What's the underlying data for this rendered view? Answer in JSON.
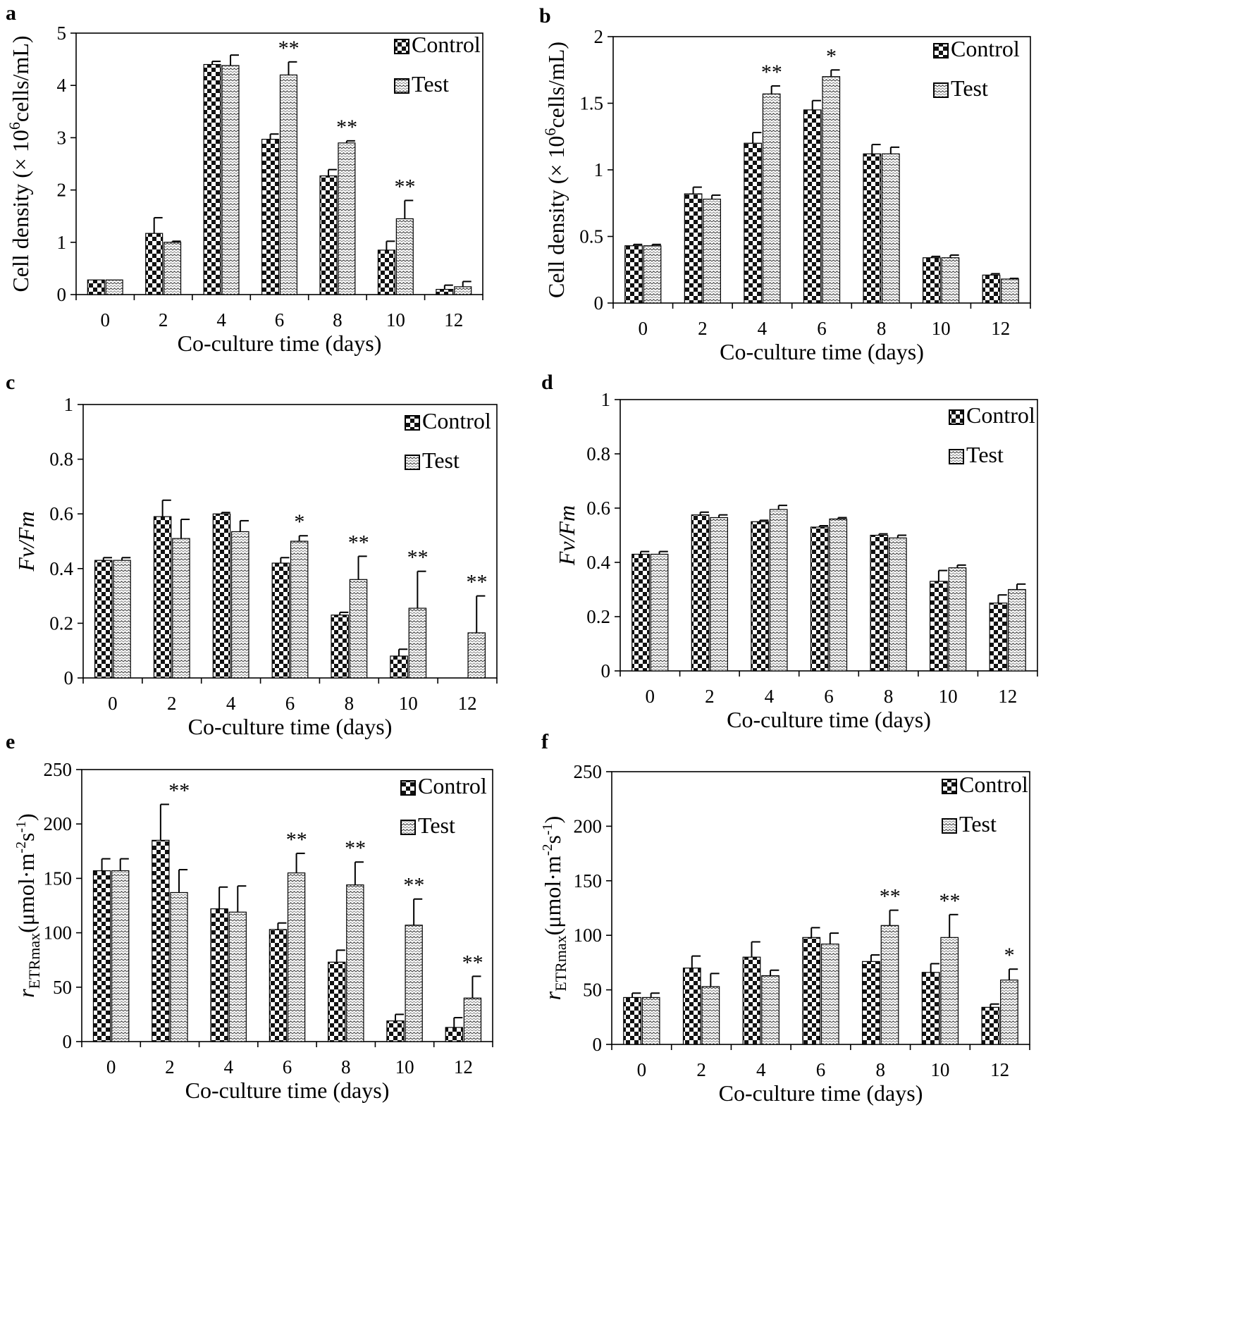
{
  "chart_data": [
    {
      "panel": "a",
      "type": "bar",
      "categories": [
        "0",
        "2",
        "4",
        "6",
        "8",
        "10",
        "12"
      ],
      "xlabel": "Co-culture time (days)",
      "ylabel": "Cell density (×10⁶cells/mL)",
      "ylabel_parts": {
        "main": "Cell density (× 10",
        "sup": "6",
        "tail": "cells/mL)"
      },
      "ylim": [
        0,
        5
      ],
      "yticks": [
        0,
        1,
        2,
        3,
        4,
        5
      ],
      "legend": [
        "Control",
        "Test"
      ],
      "series": [
        {
          "name": "Control",
          "values": [
            0.28,
            1.17,
            4.4,
            2.97,
            2.27,
            0.85,
            0.1
          ],
          "errors": [
            0,
            0.3,
            0.06,
            0.1,
            0.12,
            0.17,
            0.08
          ]
        },
        {
          "name": "Test",
          "values": [
            0.28,
            1.0,
            4.38,
            4.2,
            2.9,
            1.45,
            0.15
          ],
          "errors": [
            0,
            0.02,
            0.2,
            0.25,
            0.04,
            0.35,
            0.1
          ]
        }
      ],
      "significance": [
        "",
        "",
        "",
        "**",
        "**",
        "**",
        ""
      ]
    },
    {
      "panel": "b",
      "type": "bar",
      "categories": [
        "0",
        "2",
        "4",
        "6",
        "8",
        "10",
        "12"
      ],
      "xlabel": "Co-culture time (days)",
      "ylabel": "Cell density (×10⁶cells/mL)",
      "ylabel_parts": {
        "main": "Cell density (× 10",
        "sup": "6",
        "tail": "cells/mL)"
      },
      "ylim": [
        0,
        2
      ],
      "yticks": [
        0,
        0.5,
        1,
        1.5,
        2
      ],
      "legend": [
        "Control",
        "Test"
      ],
      "series": [
        {
          "name": "Control",
          "values": [
            0.43,
            0.82,
            1.2,
            1.45,
            1.12,
            0.34,
            0.21
          ],
          "errors": [
            0.01,
            0.05,
            0.08,
            0.07,
            0.07,
            0.01,
            0.01
          ]
        },
        {
          "name": "Test",
          "values": [
            0.43,
            0.78,
            1.57,
            1.7,
            1.12,
            0.34,
            0.18
          ],
          "errors": [
            0.01,
            0.03,
            0.06,
            0.05,
            0.05,
            0.02,
            0.005
          ]
        }
      ],
      "significance": [
        "",
        "",
        "**",
        "*",
        "",
        "",
        ""
      ]
    },
    {
      "panel": "c",
      "type": "bar",
      "categories": [
        "0",
        "2",
        "4",
        "6",
        "8",
        "10",
        "12"
      ],
      "xlabel": "Co-culture time (days)",
      "ylabel": "Fv/Fm",
      "ylabel_parts": {
        "main": "Fv/Fm"
      },
      "ylim": [
        0,
        1
      ],
      "yticks": [
        0,
        0.2,
        0.4,
        0.6,
        0.8,
        1
      ],
      "legend": [
        "Control",
        "Test"
      ],
      "series": [
        {
          "name": "Control",
          "values": [
            0.43,
            0.59,
            0.6,
            0.42,
            0.23,
            0.08,
            0
          ],
          "errors": [
            0.01,
            0.06,
            0.005,
            0.02,
            0.01,
            0.025,
            0
          ]
        },
        {
          "name": "Test",
          "values": [
            0.43,
            0.51,
            0.535,
            0.5,
            0.36,
            0.255,
            0.165
          ],
          "errors": [
            0.01,
            0.07,
            0.04,
            0.02,
            0.085,
            0.135,
            0.135
          ]
        }
      ],
      "significance": [
        "",
        "",
        "",
        "*",
        "**",
        "**",
        "**"
      ]
    },
    {
      "panel": "d",
      "type": "bar",
      "categories": [
        "0",
        "2",
        "4",
        "6",
        "8",
        "10",
        "12"
      ],
      "xlabel": "Co-culture time (days)",
      "ylabel": "Fv/Fm",
      "ylabel_parts": {
        "main": "Fv/Fm"
      },
      "ylim": [
        0,
        1
      ],
      "yticks": [
        0,
        0.2,
        0.4,
        0.6,
        0.8,
        1
      ],
      "legend": [
        "Control",
        "Test"
      ],
      "series": [
        {
          "name": "Control",
          "values": [
            0.43,
            0.575,
            0.55,
            0.53,
            0.5,
            0.33,
            0.25
          ],
          "errors": [
            0.01,
            0.01,
            0.005,
            0.005,
            0.005,
            0.04,
            0.03
          ]
        },
        {
          "name": "Test",
          "values": [
            0.43,
            0.565,
            0.595,
            0.56,
            0.49,
            0.38,
            0.3
          ],
          "errors": [
            0.01,
            0.01,
            0.015,
            0.005,
            0.01,
            0.01,
            0.02
          ]
        }
      ],
      "significance": [
        "",
        "",
        "",
        "",
        "",
        "",
        ""
      ]
    },
    {
      "panel": "e",
      "type": "bar",
      "categories": [
        "0",
        "2",
        "4",
        "6",
        "8",
        "10",
        "12"
      ],
      "xlabel": "Co-culture time (days)",
      "ylabel": "rETRmax(μmol·m⁻²s⁻¹)",
      "ylabel_parts": {
        "r": "r",
        "sub": "ETRmax",
        "tail": "(μmol·m",
        "sup1": "-2",
        "mid": "s",
        "sup2": "-1",
        "end": ")"
      },
      "ylim": [
        0,
        250
      ],
      "yticks": [
        0,
        50,
        100,
        150,
        200,
        250
      ],
      "legend": [
        "Control",
        "Test"
      ],
      "series": [
        {
          "name": "Control",
          "values": [
            157,
            185,
            122,
            103,
            73,
            19,
            13
          ],
          "errors": [
            11,
            33,
            20,
            6,
            11,
            6,
            9
          ]
        },
        {
          "name": "Test",
          "values": [
            157,
            137,
            119,
            155,
            144,
            107,
            40
          ],
          "errors": [
            11,
            21,
            24,
            18,
            21,
            24,
            20
          ]
        }
      ],
      "significance": [
        "",
        "**",
        "",
        "**",
        "**",
        "**",
        "**"
      ]
    },
    {
      "panel": "f",
      "type": "bar",
      "categories": [
        "0",
        "2",
        "4",
        "6",
        "8",
        "10",
        "12"
      ],
      "xlabel": "Co-culture time (days)",
      "ylabel": "rETRmax(μmol·m⁻²s⁻¹)",
      "ylabel_parts": {
        "r": "r",
        "sub": "ETRmax",
        "tail": "(μmol·m",
        "sup1": "-2",
        "mid": "s",
        "sup2": "-1",
        "end": ")"
      },
      "ylim": [
        0,
        250
      ],
      "yticks": [
        0,
        50,
        100,
        150,
        200,
        250
      ],
      "legend": [
        "Control",
        "Test"
      ],
      "series": [
        {
          "name": "Control",
          "values": [
            43,
            70,
            80,
            98,
            76,
            66,
            34
          ],
          "errors": [
            4,
            11,
            14,
            9,
            6,
            8,
            3
          ]
        },
        {
          "name": "Test",
          "values": [
            43,
            53,
            63,
            92,
            109,
            98,
            59
          ],
          "errors": [
            4,
            12,
            5,
            10,
            14,
            21,
            10
          ]
        }
      ],
      "significance": [
        "",
        "",
        "",
        "",
        "**",
        "**",
        "*"
      ]
    }
  ]
}
